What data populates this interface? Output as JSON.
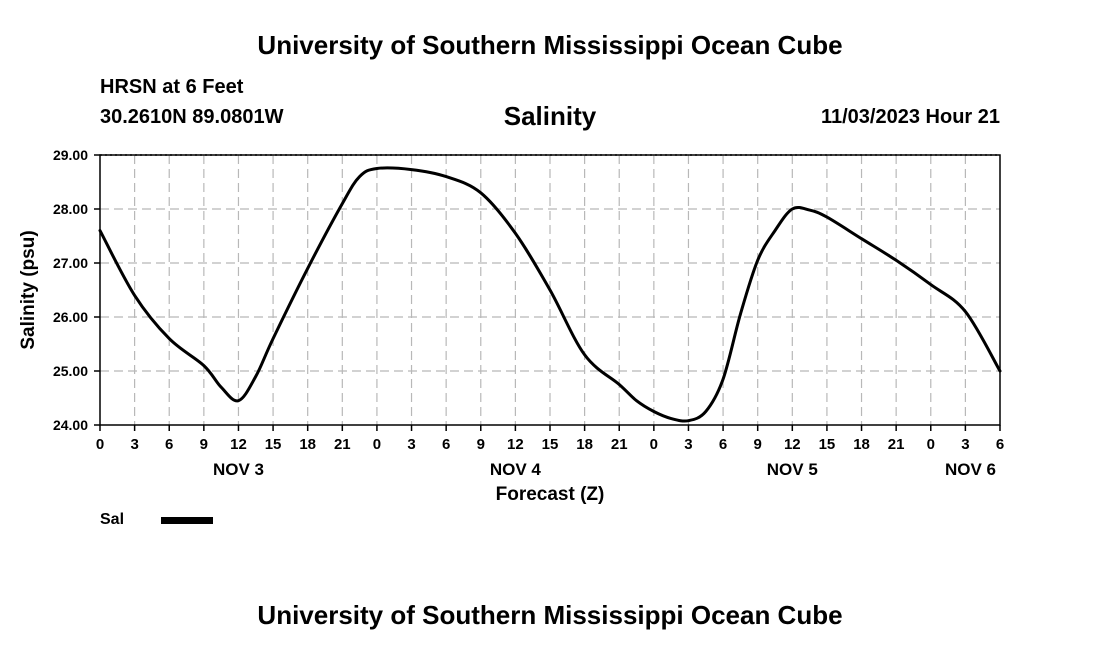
{
  "header": {
    "title": "University of Southern Mississippi Ocean Cube",
    "station": "HRSN at 6 Feet",
    "coordinates": "30.2610N  89.0801W",
    "variable": "Salinity",
    "timestamp": "11/03/2023 Hour 21"
  },
  "footer": {
    "title": "University of Southern Mississippi Ocean Cube"
  },
  "legend": {
    "label": "Sal"
  },
  "chart_data": {
    "type": "line",
    "title": "Salinity",
    "xlabel": "Forecast (Z)",
    "ylabel": "Salinity (psu)",
    "ylim": [
      24.0,
      29.0
    ],
    "xlim": [
      0,
      78
    ],
    "y_ticks": [
      "24.00",
      "25.00",
      "26.00",
      "27.00",
      "28.00",
      "29.00"
    ],
    "y_tick_values": [
      24,
      25,
      26,
      27,
      28,
      29
    ],
    "x_tick_labels": [
      "0",
      "3",
      "6",
      "9",
      "12",
      "15",
      "18",
      "21",
      "0",
      "3",
      "6",
      "9",
      "12",
      "15",
      "18",
      "21",
      "0",
      "3",
      "6",
      "9",
      "12",
      "15",
      "18",
      "21",
      "0",
      "3",
      "6"
    ],
    "date_labels": [
      {
        "label": "NOV 3",
        "hour": 12
      },
      {
        "label": "NOV 4",
        "hour": 36
      },
      {
        "label": "NOV 5",
        "hour": 60
      },
      {
        "label": "NOV 6",
        "hour": 78
      }
    ],
    "grid": true,
    "series": [
      {
        "name": "Sal",
        "x": [
          0,
          3,
          6,
          9,
          10.5,
          12,
          13.5,
          15,
          18,
          21,
          22.5,
          24,
          27,
          30,
          33,
          36,
          39,
          42,
          45,
          46.5,
          48,
          49.5,
          51,
          52.5,
          54,
          55.5,
          57,
          58.5,
          60,
          61.5,
          63,
          66,
          69,
          72,
          75,
          78
        ],
        "values": [
          27.6,
          26.4,
          25.6,
          25.1,
          24.7,
          24.45,
          24.9,
          25.6,
          26.9,
          28.1,
          28.6,
          28.75,
          28.73,
          28.6,
          28.3,
          27.55,
          26.5,
          25.3,
          24.75,
          24.45,
          24.25,
          24.12,
          24.08,
          24.25,
          24.85,
          26.05,
          27.05,
          27.6,
          28.0,
          27.98,
          27.85,
          27.45,
          27.05,
          26.6,
          26.1,
          25.0
        ]
      }
    ]
  }
}
